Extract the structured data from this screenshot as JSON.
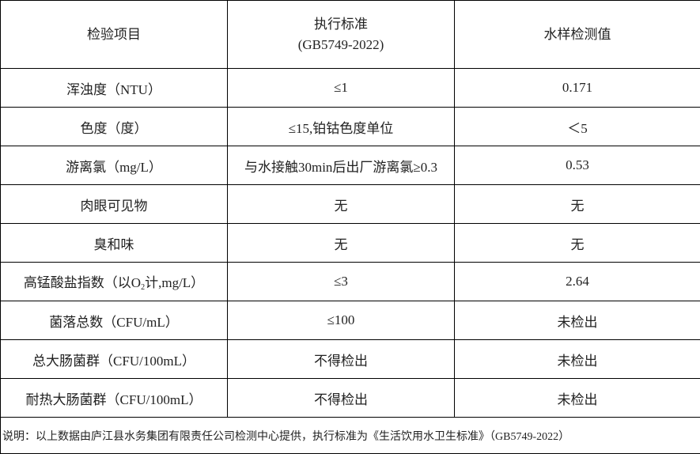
{
  "header": {
    "item": "检验项目",
    "standard_line1": "执行标准",
    "standard_line2": "(GB5749-2022)",
    "value": "水样检测值"
  },
  "rows": [
    {
      "item": "浑浊度（NTU）",
      "standard": "≤1",
      "value": "0.171"
    },
    {
      "item": "色度（度）",
      "standard": "≤15,铂钴色度单位",
      "value": "＜5"
    },
    {
      "item": "游离氯（mg/L）",
      "standard": "与水接触30min后出厂游离氯≥0.3",
      "value": "0.53"
    },
    {
      "item": "肉眼可见物",
      "standard": "无",
      "value": "无"
    },
    {
      "item": "臭和味",
      "standard": "无",
      "value": "无"
    },
    {
      "item_prefix": "高锰酸盐指数（以O",
      "item_sub": "2",
      "item_suffix": "计,mg/L）",
      "standard": "≤3",
      "value": "2.64"
    },
    {
      "item": "菌落总数（CFU/mL）",
      "standard": "≤100",
      "value": "未检出"
    },
    {
      "item": "总大肠菌群（CFU/100mL）",
      "standard": "不得检出",
      "value": "未检出"
    },
    {
      "item": "耐热大肠菌群（CFU/100mL）",
      "standard": "不得检出",
      "value": "未检出"
    }
  ],
  "footer": "说明：以上数据由庐江县水务集团有限责任公司检测中心提供，执行标准为《生活饮用水卫生标准》（GB5749-2022）"
}
